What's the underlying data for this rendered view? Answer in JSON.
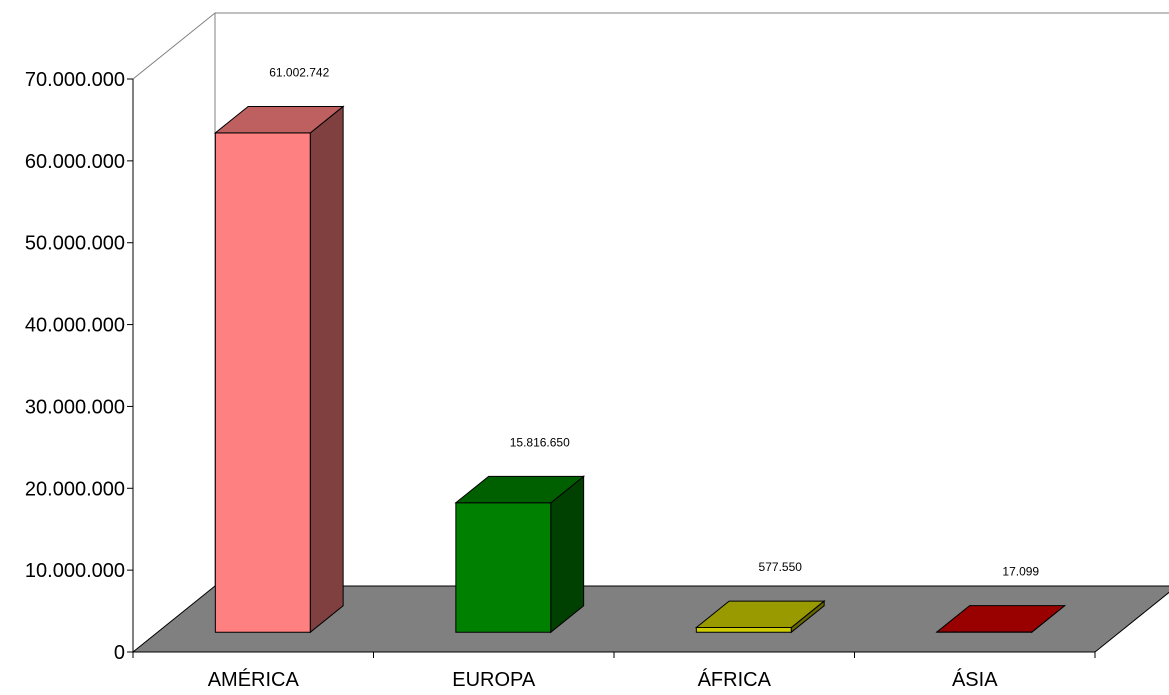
{
  "chart_data": {
    "type": "bar",
    "style": "3d-column",
    "title": "",
    "xlabel": "",
    "ylabel": "",
    "categories": [
      "AMÉRICA",
      "EUROPA",
      "ÁFRICA",
      "ÁSIA"
    ],
    "values": [
      61002742,
      15816650,
      577550,
      17099
    ],
    "data_labels": [
      "61.002.742",
      "15.816.650",
      "577.550",
      "17.099"
    ],
    "ylim": [
      0,
      70000000
    ],
    "yticks": [
      0,
      10000000,
      20000000,
      30000000,
      40000000,
      50000000,
      60000000,
      70000000
    ],
    "ytick_labels": [
      "0",
      "10.000.000",
      "20.000.000",
      "30.000.000",
      "40.000.000",
      "50.000.000",
      "60.000.000",
      "70.000.000"
    ],
    "grid": false,
    "legend": "none",
    "colors": {
      "bars": [
        "#FF8080",
        "#008000",
        "#CCCC00",
        "#CC0000"
      ],
      "bar_sides": [
        "#804040",
        "#004000",
        "#666600",
        "#800000"
      ],
      "bar_tops": [
        "#BF6060",
        "#006000",
        "#999900",
        "#990000"
      ],
      "floor": "#808080",
      "walls": "#ffffff"
    }
  }
}
